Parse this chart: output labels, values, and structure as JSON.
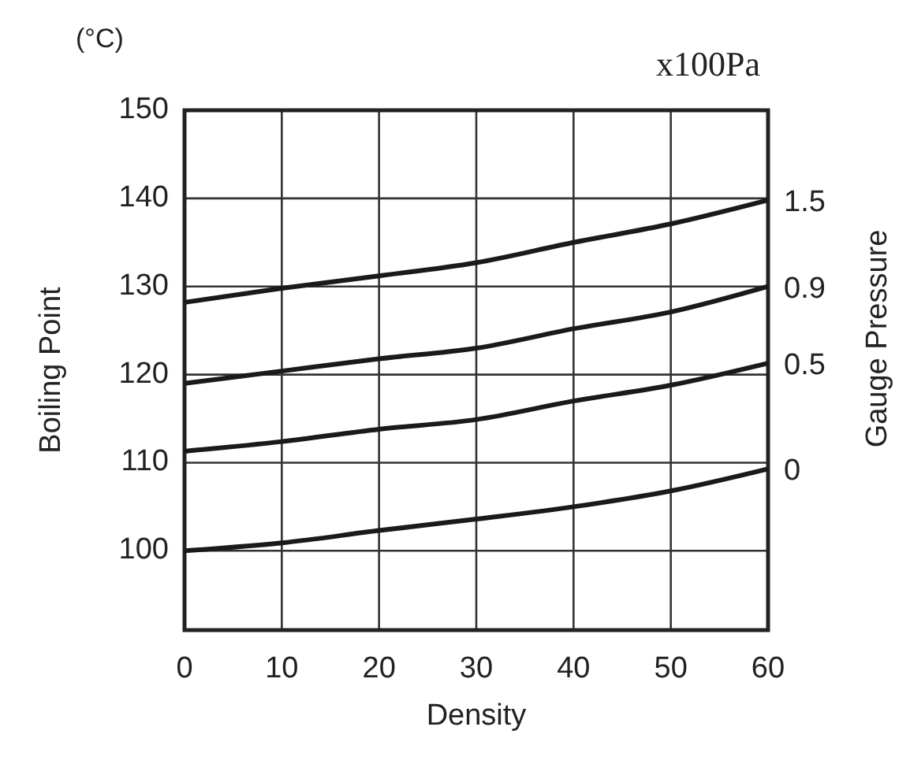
{
  "chart_data": {
    "type": "line",
    "xlabel": "Density",
    "ylabel": "Boiling Point",
    "y2label": "Gauge Pressure",
    "annotations": [
      "(°C)",
      "x100Pa"
    ],
    "x": [
      0,
      10,
      20,
      30,
      40,
      50,
      60
    ],
    "series": [
      {
        "name": "0",
        "color": "#1a1a1a",
        "values": [
          100,
          100.9,
          102.3,
          103.6,
          105,
          106.8,
          109.3
        ]
      },
      {
        "name": "0.5",
        "color": "#1a1a1a",
        "values": [
          111.3,
          112.4,
          113.8,
          114.9,
          117,
          118.8,
          121.3
        ]
      },
      {
        "name": "0.9",
        "color": "#1a1a1a",
        "values": [
          119,
          120.4,
          121.8,
          123,
          125.2,
          127.1,
          130
        ]
      },
      {
        "name": "1.5",
        "color": "#1a1a1a",
        "values": [
          128.2,
          129.8,
          131.2,
          132.7,
          135,
          137.1,
          139.8
        ]
      }
    ],
    "xlim": [
      0,
      60
    ],
    "xticks": [
      0,
      10,
      20,
      30,
      40,
      50,
      60
    ],
    "ylim": [
      91,
      150
    ],
    "yticks": [
      100,
      110,
      120,
      130,
      140,
      150
    ],
    "grid": true,
    "marker": "none",
    "line_style": "solid"
  }
}
